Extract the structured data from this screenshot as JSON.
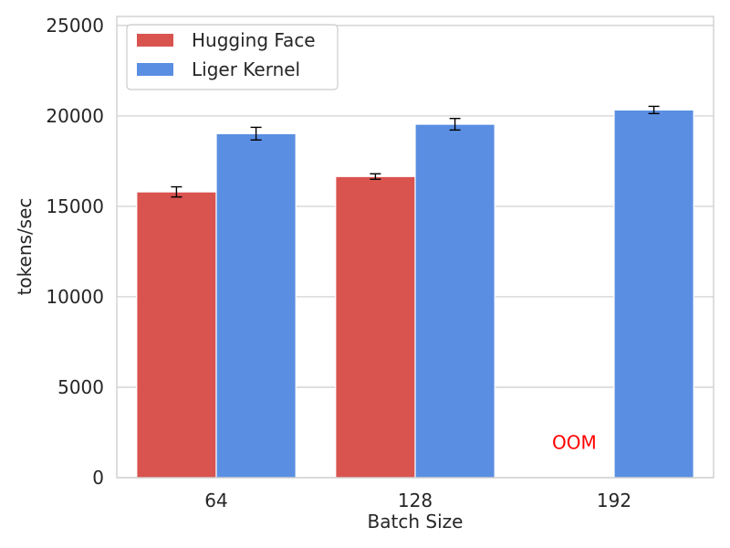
{
  "chart_data": {
    "type": "bar",
    "categories": [
      "64",
      "128",
      "192"
    ],
    "xlabel": "Batch Size",
    "ylabel": "tokens/sec",
    "ylim": [
      0,
      25500
    ],
    "yticks": [
      0,
      5000,
      10000,
      15000,
      20000,
      25000
    ],
    "yticks_text": [
      "0",
      "5000",
      "10000",
      "15000",
      "20000",
      "25000"
    ],
    "grid": "horizontal",
    "legend": "top-left",
    "series": [
      {
        "name": "Hugging Face",
        "color": "#d9534f",
        "values": [
          15800,
          16650,
          0
        ],
        "error": [
          280,
          150,
          0
        ]
      },
      {
        "name": "Liger Kernel",
        "color": "#5a8ee2",
        "values": [
          19020,
          19540,
          20330
        ],
        "error": [
          350,
          320,
          200
        ]
      }
    ],
    "annotations": [
      {
        "text": "OOM",
        "category": "192",
        "series": "Hugging Face",
        "y": 1600,
        "color": "#ff0000"
      }
    ]
  }
}
